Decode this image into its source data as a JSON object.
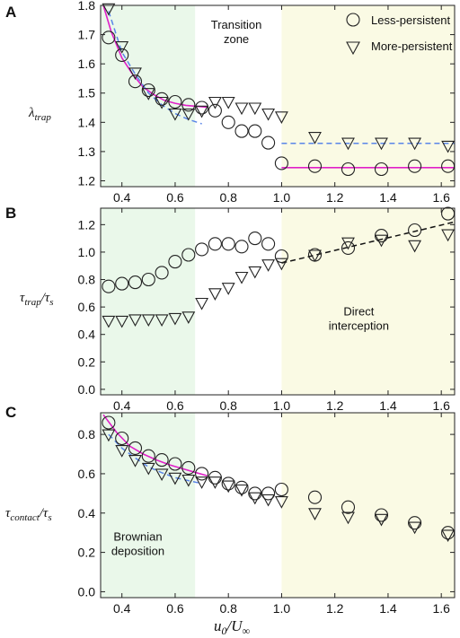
{
  "colors": {
    "green_zone": "#eaf8ea",
    "yellow_zone": "#fafae4",
    "magenta": "#e020c8",
    "blue_dashed": "#5a86e8",
    "black_dashed": "#111111",
    "marker": "#222222"
  },
  "x_axis": {
    "label_main": "u",
    "label_sub0": "0",
    "label_sep": "/U",
    "label_sub1": "∞",
    "ticks": [
      0.4,
      0.6,
      0.8,
      1.0,
      1.2,
      1.4,
      1.6
    ],
    "tick_labels": [
      "0.4",
      "0.6",
      "0.8",
      "1.0",
      "1.2",
      "1.4",
      "1.6"
    ]
  },
  "legend": {
    "less_persistent": "Less-persistent",
    "more_persistent": "More-persistent"
  },
  "chart_data": [
    {
      "type": "scatter",
      "panel": "A",
      "ylabel": "λ_trap",
      "xlim": [
        0.32,
        1.65
      ],
      "ylim": [
        1.18,
        1.8
      ],
      "yticks": [
        1.2,
        1.3,
        1.4,
        1.5,
        1.6,
        1.7,
        1.8
      ],
      "ytick_labels": [
        "1.2",
        "1.3",
        "1.4",
        "1.5",
        "1.6",
        "1.7",
        "1.8"
      ],
      "zones": {
        "green": [
          0.32,
          0.675
        ],
        "yellow": [
          1.0,
          1.65
        ]
      },
      "annotations": [
        {
          "lines": [
            "Transition",
            "zone"
          ],
          "x": 0.83,
          "y": 1.72
        }
      ],
      "series": [
        {
          "name": "Less-persistent",
          "marker": "circle",
          "x": [
            0.35,
            0.4,
            0.45,
            0.5,
            0.55,
            0.6,
            0.65,
            0.7,
            0.75,
            0.8,
            0.85,
            0.9,
            0.95,
            1.0,
            1.125,
            1.25,
            1.375,
            1.5,
            1.625
          ],
          "y": [
            1.69,
            1.63,
            1.54,
            1.51,
            1.48,
            1.47,
            1.46,
            1.45,
            1.44,
            1.4,
            1.37,
            1.37,
            1.33,
            1.26,
            1.25,
            1.24,
            1.24,
            1.25,
            1.25
          ]
        },
        {
          "name": "More-persistent",
          "marker": "triangle",
          "x": [
            0.35,
            0.4,
            0.45,
            0.5,
            0.55,
            0.6,
            0.65,
            0.7,
            0.75,
            0.8,
            0.85,
            0.9,
            0.95,
            1.0,
            1.125,
            1.25,
            1.375,
            1.5,
            1.625
          ],
          "y": [
            1.79,
            1.66,
            1.57,
            1.5,
            1.47,
            1.43,
            1.43,
            1.44,
            1.47,
            1.47,
            1.45,
            1.45,
            1.43,
            1.42,
            1.35,
            1.33,
            1.33,
            1.33,
            1.32
          ]
        }
      ],
      "fit_lines": [
        {
          "style": "solid",
          "color": "magenta",
          "x": [
            0.33,
            0.36,
            0.4,
            0.44,
            0.48,
            0.52,
            0.56,
            0.6,
            0.64,
            0.68,
            0.72
          ],
          "y": [
            1.8,
            1.71,
            1.62,
            1.565,
            1.52,
            1.495,
            1.475,
            1.465,
            1.458,
            1.455,
            1.452
          ]
        },
        {
          "style": "solid",
          "color": "magenta",
          "x": [
            1.0,
            1.65
          ],
          "y": [
            1.245,
            1.245
          ]
        },
        {
          "style": "dashed",
          "color": "blue_dashed",
          "x": [
            0.35,
            0.4,
            0.45,
            0.5,
            0.55,
            0.6,
            0.65,
            0.7
          ],
          "y": [
            1.78,
            1.64,
            1.565,
            1.5,
            1.46,
            1.43,
            1.41,
            1.395
          ]
        },
        {
          "style": "dashed",
          "color": "blue_dashed",
          "x": [
            1.0,
            1.65
          ],
          "y": [
            1.328,
            1.328
          ]
        }
      ]
    },
    {
      "type": "scatter",
      "panel": "B",
      "ylabel": "τ_trap/τ_s",
      "xlim": [
        0.32,
        1.65
      ],
      "ylim": [
        -0.04,
        1.32
      ],
      "yticks": [
        0.0,
        0.2,
        0.4,
        0.6,
        0.8,
        1.0,
        1.2
      ],
      "ytick_labels": [
        "0.0",
        "0.2",
        "0.4",
        "0.6",
        "0.8",
        "1.0",
        "1.2"
      ],
      "zones": {
        "green": [
          0.32,
          0.675
        ],
        "yellow": [
          1.0,
          1.65
        ]
      },
      "annotations": [
        {
          "lines": [
            "Direct",
            "interception"
          ],
          "x": 1.29,
          "y": 0.54
        }
      ],
      "series": [
        {
          "name": "Less-persistent",
          "marker": "circle",
          "x": [
            0.35,
            0.4,
            0.45,
            0.5,
            0.55,
            0.6,
            0.65,
            0.7,
            0.75,
            0.8,
            0.85,
            0.9,
            0.95,
            1.0,
            1.125,
            1.25,
            1.375,
            1.5,
            1.625
          ],
          "y": [
            0.75,
            0.77,
            0.78,
            0.8,
            0.85,
            0.93,
            0.98,
            1.02,
            1.06,
            1.06,
            1.04,
            1.1,
            1.06,
            0.97,
            0.98,
            1.03,
            1.12,
            1.16,
            1.28
          ]
        },
        {
          "name": "More-persistent",
          "marker": "triangle",
          "x": [
            0.35,
            0.4,
            0.45,
            0.5,
            0.55,
            0.6,
            0.65,
            0.7,
            0.75,
            0.8,
            0.85,
            0.9,
            0.95,
            1.0,
            1.125,
            1.25,
            1.375,
            1.5,
            1.625
          ],
          "y": [
            0.5,
            0.5,
            0.51,
            0.51,
            0.51,
            0.52,
            0.53,
            0.63,
            0.7,
            0.74,
            0.82,
            0.86,
            0.91,
            0.92,
            0.98,
            1.07,
            1.09,
            1.05,
            1.13
          ]
        }
      ],
      "fit_lines": [
        {
          "style": "dashed",
          "color": "black_dashed",
          "x": [
            1.0,
            1.65
          ],
          "y": [
            0.92,
            1.22
          ]
        }
      ]
    },
    {
      "type": "scatter",
      "panel": "C",
      "ylabel": "τ_contact/τ_s",
      "xlim": [
        0.32,
        1.65
      ],
      "ylim": [
        -0.03,
        0.91
      ],
      "yticks": [
        0.0,
        0.2,
        0.4,
        0.6,
        0.8
      ],
      "ytick_labels": [
        "0.0",
        "0.2",
        "0.4",
        "0.6",
        "0.8"
      ],
      "zones": {
        "green": [
          0.32,
          0.675
        ],
        "yellow": [
          1.0,
          1.65
        ]
      },
      "annotations": [
        {
          "lines": [
            "Brownian",
            "deposition"
          ],
          "x": 0.46,
          "y": 0.26
        }
      ],
      "series": [
        {
          "name": "Less-persistent",
          "marker": "circle",
          "x": [
            0.35,
            0.4,
            0.45,
            0.5,
            0.55,
            0.6,
            0.65,
            0.7,
            0.75,
            0.8,
            0.85,
            0.9,
            0.95,
            1.0,
            1.125,
            1.25,
            1.375,
            1.5,
            1.625
          ],
          "y": [
            0.86,
            0.78,
            0.73,
            0.69,
            0.67,
            0.65,
            0.63,
            0.6,
            0.58,
            0.55,
            0.53,
            0.5,
            0.5,
            0.52,
            0.48,
            0.43,
            0.39,
            0.35,
            0.3
          ]
        },
        {
          "name": "More-persistent",
          "marker": "triangle",
          "x": [
            0.35,
            0.4,
            0.45,
            0.5,
            0.55,
            0.6,
            0.65,
            0.7,
            0.75,
            0.8,
            0.85,
            0.9,
            0.95,
            1.0,
            1.125,
            1.25,
            1.375,
            1.5,
            1.625
          ],
          "y": [
            0.8,
            0.72,
            0.67,
            0.63,
            0.6,
            0.58,
            0.57,
            0.56,
            0.56,
            0.54,
            0.52,
            0.48,
            0.47,
            0.46,
            0.4,
            0.38,
            0.37,
            0.33,
            0.29
          ]
        }
      ],
      "fit_lines": [
        {
          "style": "solid",
          "color": "magenta",
          "x": [
            0.33,
            0.38,
            0.43,
            0.48,
            0.53,
            0.58,
            0.63,
            0.68,
            0.72
          ],
          "y": [
            0.9,
            0.81,
            0.74,
            0.7,
            0.67,
            0.645,
            0.625,
            0.605,
            0.59
          ]
        },
        {
          "style": "dashed",
          "color": "blue_dashed",
          "x": [
            0.35,
            0.4,
            0.45,
            0.5,
            0.55,
            0.6,
            0.65,
            0.7
          ],
          "y": [
            0.8,
            0.73,
            0.68,
            0.635,
            0.605,
            0.58,
            0.565,
            0.55
          ]
        }
      ]
    }
  ]
}
